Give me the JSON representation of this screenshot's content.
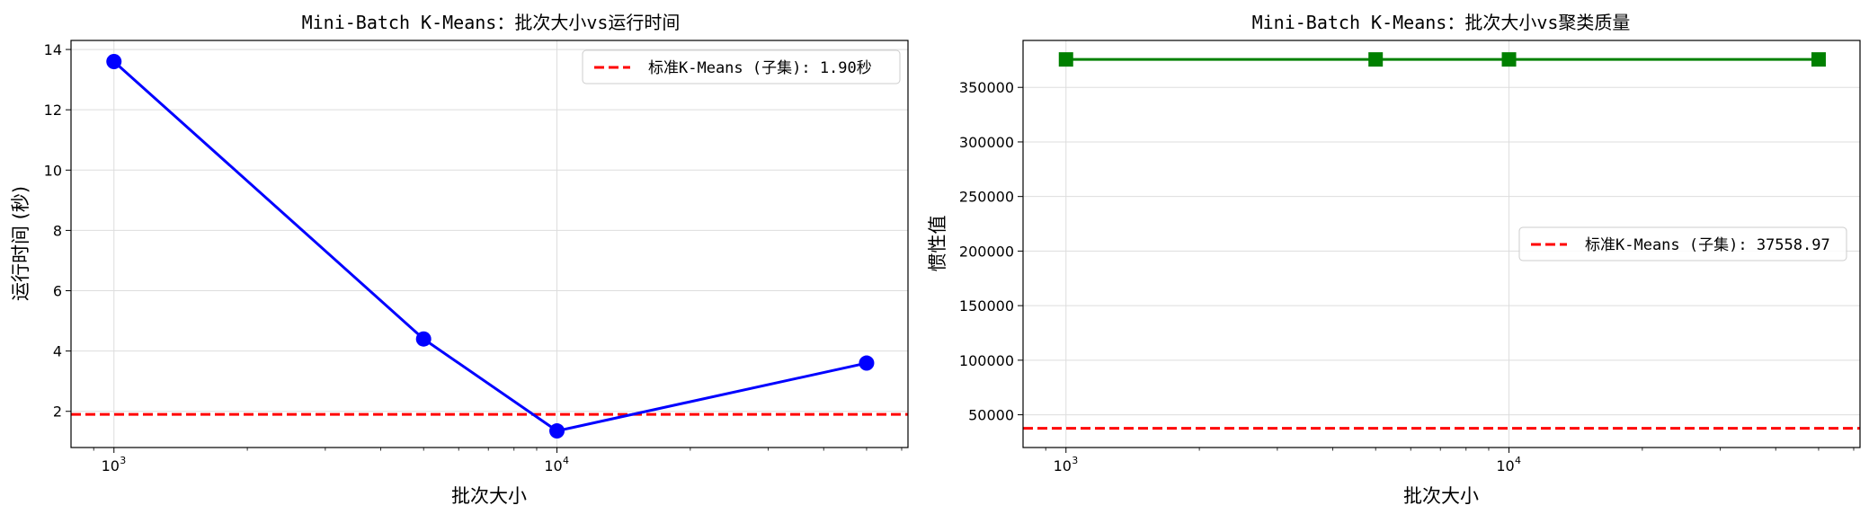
{
  "chart_data": [
    {
      "type": "line",
      "title": "Mini-Batch K-Means：批次大小vs运行时间",
      "xlabel": "批次大小",
      "ylabel": "运行时间 (秒)",
      "xscale": "log",
      "xlim": [
        800,
        62000
      ],
      "ylim": [
        0.8,
        14.3
      ],
      "xticks": [
        1000,
        10000
      ],
      "xtick_labels": [
        {
          "base": "10",
          "exp": "3"
        },
        {
          "base": "10",
          "exp": "4"
        }
      ],
      "yticks": [
        2,
        4,
        6,
        8,
        10,
        12,
        14
      ],
      "ytick_labels": [
        "2",
        "4",
        "6",
        "8",
        "10",
        "12",
        "14"
      ],
      "grid": true,
      "legend_position": "top-right",
      "series": [
        {
          "x": [
            1000,
            5000,
            10000,
            50000
          ],
          "values": [
            13.6,
            4.4,
            1.35,
            3.6
          ],
          "color": "#0000ff",
          "marker": "circle"
        }
      ],
      "reference_line": {
        "y": 1.9,
        "label": "标准K-Means (子集): 1.90秒",
        "color": "#ff0000",
        "style": "dashed"
      }
    },
    {
      "type": "line",
      "title": "Mini-Batch K-Means：批次大小vs聚类质量",
      "xlabel": "批次大小",
      "ylabel": "惯性值",
      "xscale": "log",
      "xlim": [
        800,
        62000
      ],
      "ylim": [
        20000,
        393000
      ],
      "xticks": [
        1000,
        10000
      ],
      "xtick_labels": [
        {
          "base": "10",
          "exp": "3"
        },
        {
          "base": "10",
          "exp": "4"
        }
      ],
      "yticks": [
        50000,
        100000,
        150000,
        200000,
        250000,
        300000,
        350000
      ],
      "ytick_labels": [
        "50000",
        "100000",
        "150000",
        "200000",
        "250000",
        "300000",
        "350000"
      ],
      "grid": true,
      "legend_position": "center-right",
      "series": [
        {
          "x": [
            1000,
            5000,
            10000,
            50000
          ],
          "values": [
            375600,
            375600,
            375600,
            375600
          ],
          "color": "#008000",
          "marker": "square"
        }
      ],
      "reference_line": {
        "y": 37558.97,
        "label": "标准K-Means (子集): 37558.97",
        "color": "#ff0000",
        "style": "dashed"
      }
    }
  ]
}
